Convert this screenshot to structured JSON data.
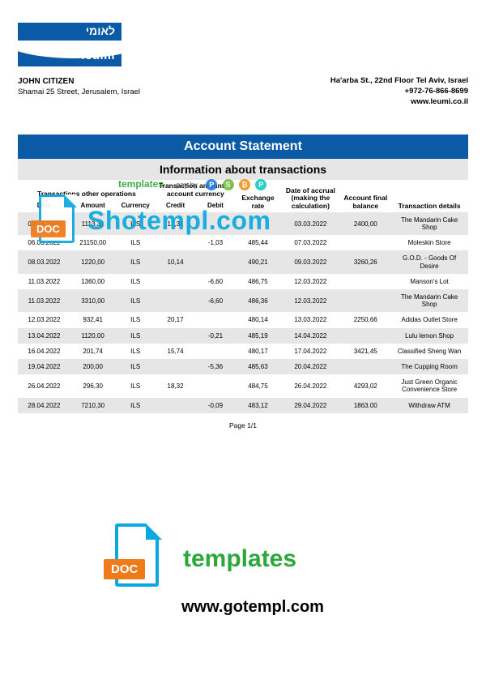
{
  "logo": {
    "hebrew": "לאומי",
    "latin": "leumi"
  },
  "customer": {
    "name": "JOHN CITIZEN",
    "address": "Shamai 25 Street, Jerusalem, Israel"
  },
  "bank": {
    "line1": "Ha'arba St., 22nd Floor Tel Aviv, Israel",
    "line2": "+972-76-866-8699",
    "line3": "www.leumi.co.il"
  },
  "titles": {
    "main": "Account Statement",
    "sub": "Information about transactions"
  },
  "table": {
    "group_headers": {
      "g1": "Transactions other operations",
      "g2": "Transaction amount in account currency",
      "g3": "Exchange rate",
      "g4": "Date of accrual (making the calculation)",
      "g5": "Account final balance",
      "g6": "Transaction details"
    },
    "headers": {
      "date": "Date",
      "amount": "Amount",
      "currency": "Currency",
      "credit": "Credit",
      "debit": "Debit"
    },
    "rows": [
      {
        "date": "02.03.2022",
        "amount": "1113,31",
        "currency": "ILS",
        "credit": "12,31",
        "debit": "",
        "rate": "",
        "accrual": "03.03.2022",
        "balance": "2400,00",
        "details": "The Mandarin Cake Shop"
      },
      {
        "date": "06.03.2022",
        "amount": "21150,00",
        "currency": "ILS",
        "credit": "",
        "debit": "-1,03",
        "rate": "485,44",
        "accrual": "07.03.2022",
        "balance": "",
        "details": "Moleskin Store"
      },
      {
        "date": "08.03.2022",
        "amount": "1220,00",
        "currency": "ILS",
        "credit": "10,14",
        "debit": "",
        "rate": "490,21",
        "accrual": "09.03.2022",
        "balance": "3260,26",
        "details": "G.O.D. - Goods Of Desire"
      },
      {
        "date": "11.03.2022",
        "amount": "1360,00",
        "currency": "ILS",
        "credit": "",
        "debit": "-6,60",
        "rate": "486,75",
        "accrual": "12.03.2022",
        "balance": "",
        "details": "Manson's Lot"
      },
      {
        "date": "11.03.2022",
        "amount": "3310,00",
        "currency": "ILS",
        "credit": "",
        "debit": "-6,60",
        "rate": "486,36",
        "accrual": "12.03.2022",
        "balance": "",
        "details": "The Mandarin Cake Shop"
      },
      {
        "date": "12.03.2022",
        "amount": "932,41",
        "currency": "ILS",
        "credit": "20,17",
        "debit": "",
        "rate": "480,14",
        "accrual": "13.03.2022",
        "balance": "2250,66",
        "details": "Adidas Outlet Store"
      },
      {
        "date": "13.04.2022",
        "amount": "1120,00",
        "currency": "ILS",
        "credit": "",
        "debit": "-0,21",
        "rate": "485,19",
        "accrual": "14.04.2022",
        "balance": "",
        "details": "Lulu lemon Shop"
      },
      {
        "date": "16.04.2022",
        "amount": "201,74",
        "currency": "ILS",
        "credit": "15,74",
        "debit": "",
        "rate": "480,17",
        "accrual": "17.04.2022",
        "balance": "3421,45",
        "details": "Classified Sheng Wan"
      },
      {
        "date": "19.04.2022",
        "amount": "200,00",
        "currency": "ILS",
        "credit": "",
        "debit": "-5,36",
        "rate": "485,63",
        "accrual": "20.04.2022",
        "balance": "",
        "details": "The Cupping Room"
      },
      {
        "date": "26.04.2022",
        "amount": "296,30",
        "currency": "ILS",
        "credit": "18,32",
        "debit": "",
        "rate": "484,75",
        "accrual": "26.04.2022",
        "balance": "4293,02",
        "details": "Just Green Organic Convenience Store"
      },
      {
        "date": "28.04.2022",
        "amount": "7210,30",
        "currency": "ILS",
        "credit": "",
        "debit": "-0,09",
        "rate": "483,12",
        "accrual": "29.04.2022",
        "balance": "1863.00",
        "details": "Withdraw ATM"
      }
    ]
  },
  "pager": "Page 1/1",
  "watermark1": {
    "badge": "DOC",
    "text": "Shotempl.com",
    "icons_label": "templates",
    "pay_label": "pay by"
  },
  "watermark2": {
    "badge": "DOC",
    "line1": "templates",
    "line2": "www.gotempl.com"
  },
  "colors": {
    "brand_blue": "#0a5aa6",
    "row_gray": "#e6e6e6",
    "wm_cyan": "#0aa8e0",
    "wm_orange": "#ee7a1a",
    "wm_green": "#2aa83a"
  }
}
